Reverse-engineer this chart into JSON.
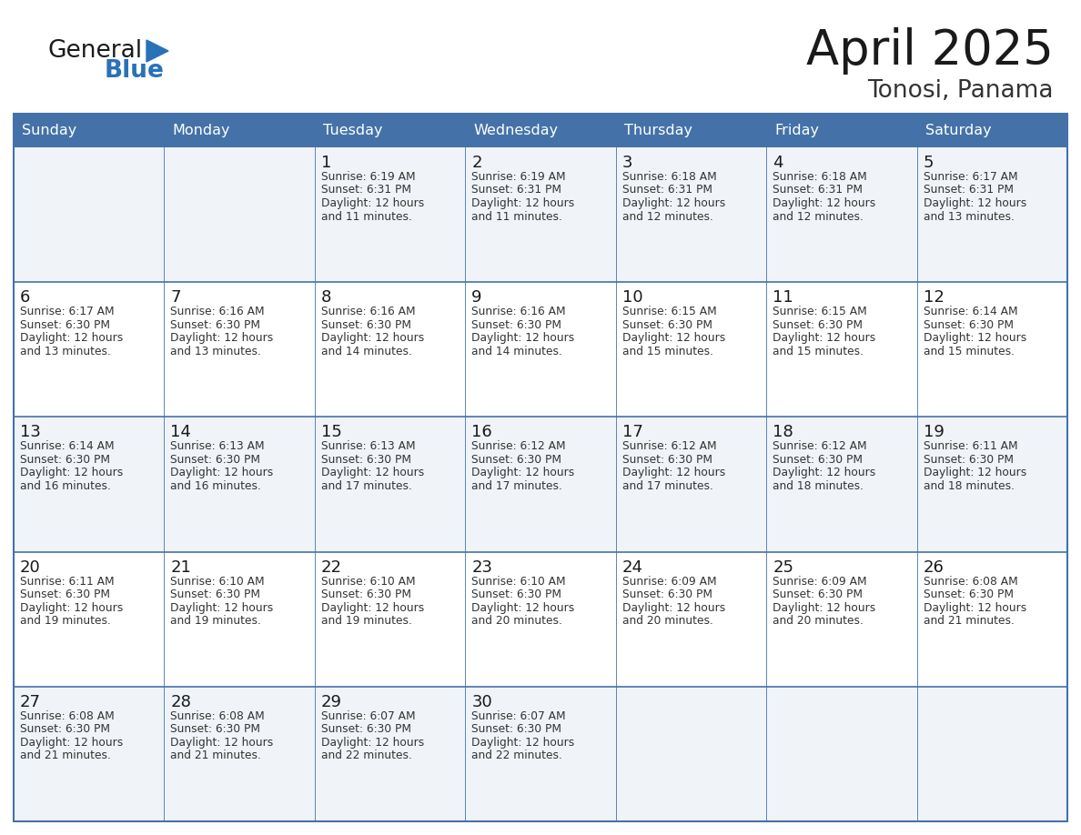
{
  "title": "April 2025",
  "subtitle": "Tonosi, Panama",
  "header_bg": "#4472a8",
  "header_text_color": "#ffffff",
  "cell_bg_even": "#f0f4f8",
  "cell_bg_odd": "#ffffff",
  "border_color": "#4472a8",
  "row_line_color": "#4472a8",
  "day_names": [
    "Sunday",
    "Monday",
    "Tuesday",
    "Wednesday",
    "Thursday",
    "Friday",
    "Saturday"
  ],
  "title_color": "#1a1a1a",
  "subtitle_color": "#333333",
  "day_number_color": "#1a1a1a",
  "cell_text_color": "#333333",
  "logo_general_color": "#1a1a1a",
  "logo_blue_color": "#2971b8",
  "calendar": [
    [
      {
        "day": "",
        "sunrise": "",
        "sunset": "",
        "daylight": ""
      },
      {
        "day": "",
        "sunrise": "",
        "sunset": "",
        "daylight": ""
      },
      {
        "day": "1",
        "sunrise": "6:19 AM",
        "sunset": "6:31 PM",
        "daylight": "12 hours and 11 minutes."
      },
      {
        "day": "2",
        "sunrise": "6:19 AM",
        "sunset": "6:31 PM",
        "daylight": "12 hours and 11 minutes."
      },
      {
        "day": "3",
        "sunrise": "6:18 AM",
        "sunset": "6:31 PM",
        "daylight": "12 hours and 12 minutes."
      },
      {
        "day": "4",
        "sunrise": "6:18 AM",
        "sunset": "6:31 PM",
        "daylight": "12 hours and 12 minutes."
      },
      {
        "day": "5",
        "sunrise": "6:17 AM",
        "sunset": "6:31 PM",
        "daylight": "12 hours and 13 minutes."
      }
    ],
    [
      {
        "day": "6",
        "sunrise": "6:17 AM",
        "sunset": "6:30 PM",
        "daylight": "12 hours and 13 minutes."
      },
      {
        "day": "7",
        "sunrise": "6:16 AM",
        "sunset": "6:30 PM",
        "daylight": "12 hours and 13 minutes."
      },
      {
        "day": "8",
        "sunrise": "6:16 AM",
        "sunset": "6:30 PM",
        "daylight": "12 hours and 14 minutes."
      },
      {
        "day": "9",
        "sunrise": "6:16 AM",
        "sunset": "6:30 PM",
        "daylight": "12 hours and 14 minutes."
      },
      {
        "day": "10",
        "sunrise": "6:15 AM",
        "sunset": "6:30 PM",
        "daylight": "12 hours and 15 minutes."
      },
      {
        "day": "11",
        "sunrise": "6:15 AM",
        "sunset": "6:30 PM",
        "daylight": "12 hours and 15 minutes."
      },
      {
        "day": "12",
        "sunrise": "6:14 AM",
        "sunset": "6:30 PM",
        "daylight": "12 hours and 15 minutes."
      }
    ],
    [
      {
        "day": "13",
        "sunrise": "6:14 AM",
        "sunset": "6:30 PM",
        "daylight": "12 hours and 16 minutes."
      },
      {
        "day": "14",
        "sunrise": "6:13 AM",
        "sunset": "6:30 PM",
        "daylight": "12 hours and 16 minutes."
      },
      {
        "day": "15",
        "sunrise": "6:13 AM",
        "sunset": "6:30 PM",
        "daylight": "12 hours and 17 minutes."
      },
      {
        "day": "16",
        "sunrise": "6:12 AM",
        "sunset": "6:30 PM",
        "daylight": "12 hours and 17 minutes."
      },
      {
        "day": "17",
        "sunrise": "6:12 AM",
        "sunset": "6:30 PM",
        "daylight": "12 hours and 17 minutes."
      },
      {
        "day": "18",
        "sunrise": "6:12 AM",
        "sunset": "6:30 PM",
        "daylight": "12 hours and 18 minutes."
      },
      {
        "day": "19",
        "sunrise": "6:11 AM",
        "sunset": "6:30 PM",
        "daylight": "12 hours and 18 minutes."
      }
    ],
    [
      {
        "day": "20",
        "sunrise": "6:11 AM",
        "sunset": "6:30 PM",
        "daylight": "12 hours and 19 minutes."
      },
      {
        "day": "21",
        "sunrise": "6:10 AM",
        "sunset": "6:30 PM",
        "daylight": "12 hours and 19 minutes."
      },
      {
        "day": "22",
        "sunrise": "6:10 AM",
        "sunset": "6:30 PM",
        "daylight": "12 hours and 19 minutes."
      },
      {
        "day": "23",
        "sunrise": "6:10 AM",
        "sunset": "6:30 PM",
        "daylight": "12 hours and 20 minutes."
      },
      {
        "day": "24",
        "sunrise": "6:09 AM",
        "sunset": "6:30 PM",
        "daylight": "12 hours and 20 minutes."
      },
      {
        "day": "25",
        "sunrise": "6:09 AM",
        "sunset": "6:30 PM",
        "daylight": "12 hours and 20 minutes."
      },
      {
        "day": "26",
        "sunrise": "6:08 AM",
        "sunset": "6:30 PM",
        "daylight": "12 hours and 21 minutes."
      }
    ],
    [
      {
        "day": "27",
        "sunrise": "6:08 AM",
        "sunset": "6:30 PM",
        "daylight": "12 hours and 21 minutes."
      },
      {
        "day": "28",
        "sunrise": "6:08 AM",
        "sunset": "6:30 PM",
        "daylight": "12 hours and 21 minutes."
      },
      {
        "day": "29",
        "sunrise": "6:07 AM",
        "sunset": "6:30 PM",
        "daylight": "12 hours and 22 minutes."
      },
      {
        "day": "30",
        "sunrise": "6:07 AM",
        "sunset": "6:30 PM",
        "daylight": "12 hours and 22 minutes."
      },
      {
        "day": "",
        "sunrise": "",
        "sunset": "",
        "daylight": ""
      },
      {
        "day": "",
        "sunrise": "",
        "sunset": "",
        "daylight": ""
      },
      {
        "day": "",
        "sunrise": "",
        "sunset": "",
        "daylight": ""
      }
    ]
  ]
}
